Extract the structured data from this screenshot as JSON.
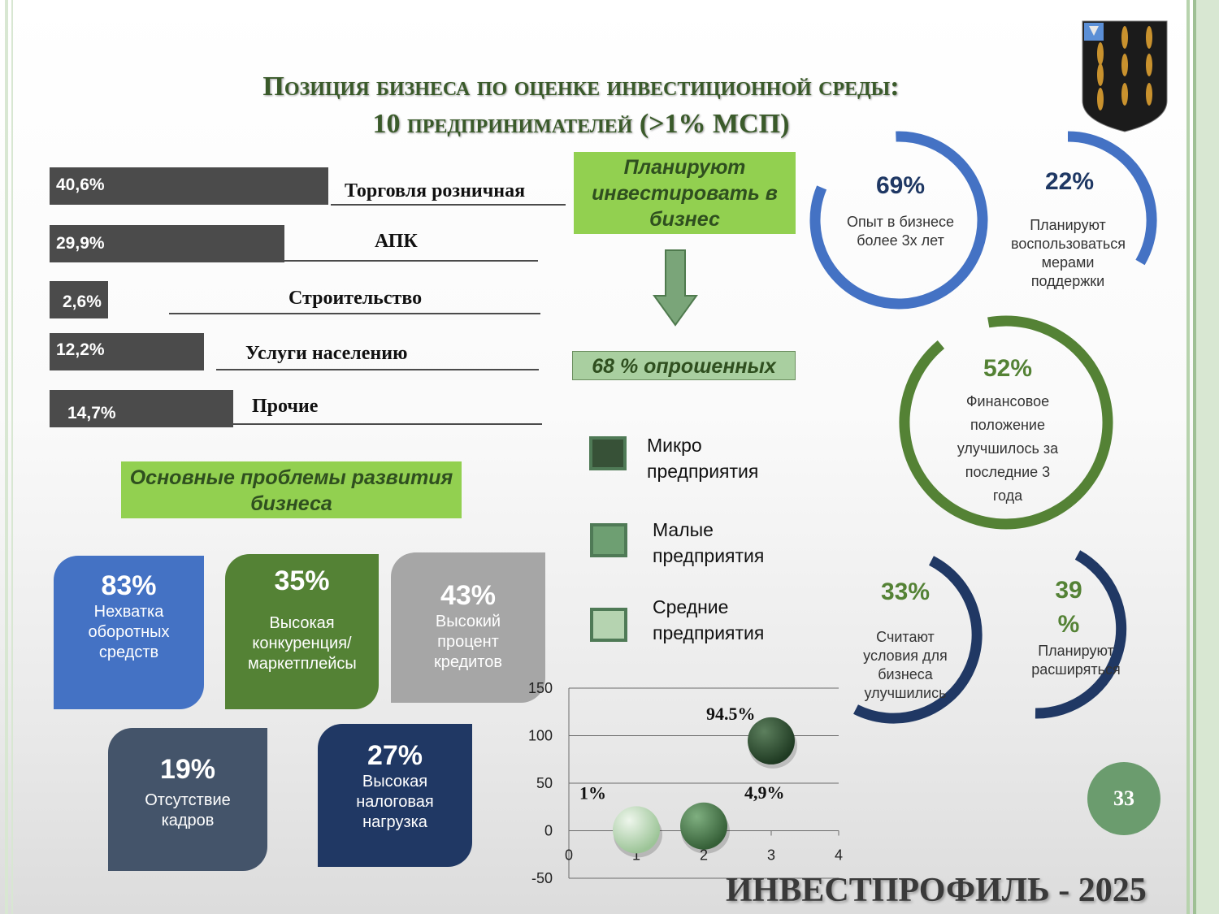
{
  "title": {
    "line1": "Позиция бизнеса по оценке инвестиционной среды:",
    "line2": "10 предпринимателей (>1% МСП)"
  },
  "sectors": [
    {
      "pct": "40,6%",
      "label": "Торговля розничная",
      "value": 40.6
    },
    {
      "pct": "29,9%",
      "label": "АПК",
      "value": 29.9
    },
    {
      "pct": "2,6%",
      "label": "Строительство",
      "value": 2.6
    },
    {
      "pct": "12,2%",
      "label": "Услуги населению",
      "value": 12.2
    },
    {
      "pct": "14,7%",
      "label": "Прочие",
      "value": 14.7
    }
  ],
  "plan_invest": "Планируют инвестировать в бизнес",
  "surveyed": "68 % опрошенных",
  "problems_title": "Основные проблемы развития бизнеса",
  "problems": [
    {
      "pct": "83%",
      "text": "Нехватка оборотных средств",
      "color": "#4472c4"
    },
    {
      "pct": "35%",
      "text": "Высокая конкуренция/ маркетплейсы",
      "color": "#548235"
    },
    {
      "pct": "43%",
      "text": "Высокий процент кредитов",
      "color": "#a6a6a6"
    },
    {
      "pct": "19%",
      "text": "Отсутствие кадров",
      "color": "#44546a"
    },
    {
      "pct": "27%",
      "text": "Высокая налоговая нагрузка",
      "color": "#203864"
    }
  ],
  "legend": [
    {
      "label": "Микро предприятия",
      "color": "#375137"
    },
    {
      "label": "Малые предприятия",
      "color": "#6e9f72"
    },
    {
      "label": "Средние предприятия",
      "color": "#b5d3b0"
    }
  ],
  "rings": [
    {
      "pct": "69%",
      "text": "Опыт в бизнесе более 3х лет",
      "color": "#4472c4",
      "pct_color": "#1f3864"
    },
    {
      "pct": "22%",
      "text": "Планируют воспользоваться мерами поддержки",
      "color": "#4472c4",
      "pct_color": "#1f3864"
    },
    {
      "pct": "52%",
      "text": "Финансовое положение улучшилось за последние 3 года",
      "color": "#548235",
      "pct_color": "#548235"
    },
    {
      "pct": "33%",
      "text": "Считают условия для бизнеса улучшились",
      "color": "#203864",
      "pct_color": "#548235"
    },
    {
      "pct": "39 %",
      "text": "Планируют расширяться",
      "color": "#203864",
      "pct_color": "#548235"
    }
  ],
  "chart_data": {
    "type": "scatter",
    "x": [
      1,
      2,
      3
    ],
    "y": [
      1,
      4.9,
      94.5
    ],
    "point_labels": [
      "1%",
      "4,9%",
      "94.5%"
    ],
    "colors": [
      "#b5d3b0",
      "#4f7a56",
      "#2e4a2f"
    ],
    "xlim": [
      0,
      4
    ],
    "ylim": [
      -50,
      150
    ],
    "xticks": [
      "0",
      "1",
      "2",
      "3",
      "4"
    ],
    "yticks": [
      "150",
      "100",
      "50",
      "0",
      "-50"
    ],
    "grid": true
  },
  "page_number": "33",
  "footer": "ИНВЕСТПРОФИЛЬ - 2025"
}
